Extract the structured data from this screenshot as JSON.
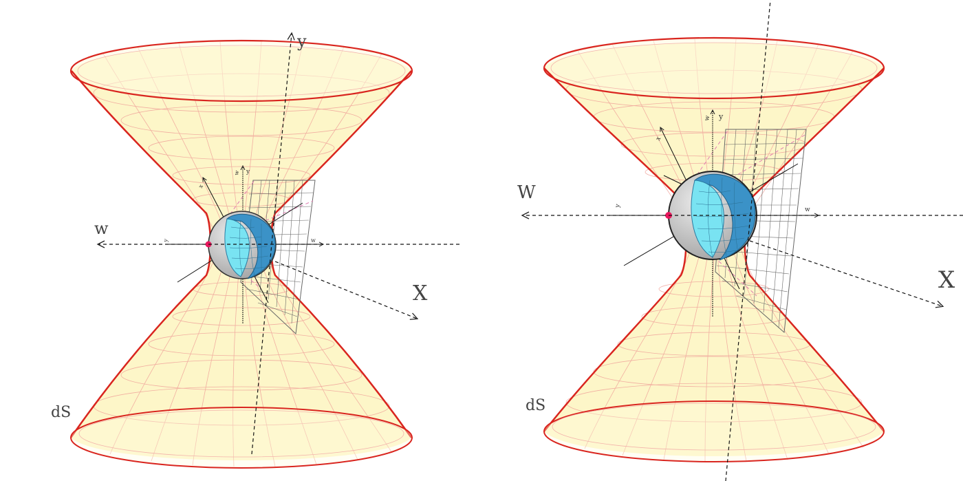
{
  "colors": {
    "surface_fill": "#fdf6c8",
    "surface_edge": "#d9251f",
    "grid_line": "#f0a29a",
    "sphere_cyan": "#79e3f2",
    "sphere_blue": "#3b92c7",
    "sphere_grey": "#c9c9c9",
    "point_marker": "#e8175d",
    "axis_line": "#111111",
    "label_text": "#444444"
  },
  "icons": [
    "hyperboloid-surface",
    "ball-with-crescent",
    "tangent-plane-grid",
    "base-point-marker"
  ],
  "diagrams": [
    {
      "id": "left",
      "surface_label": "dS",
      "axis_w_label": "w",
      "axis_x_label": "X",
      "axis_y_label": "y",
      "small_axis_labels": [
        "y",
        "x",
        "w",
        "w",
        "y"
      ]
    },
    {
      "id": "right",
      "surface_label": "dS",
      "axis_w_label": "W",
      "axis_x_label": "X",
      "axis_y_label": "",
      "small_axis_labels": [
        "y",
        "x",
        "w",
        "w",
        "y"
      ]
    }
  ]
}
